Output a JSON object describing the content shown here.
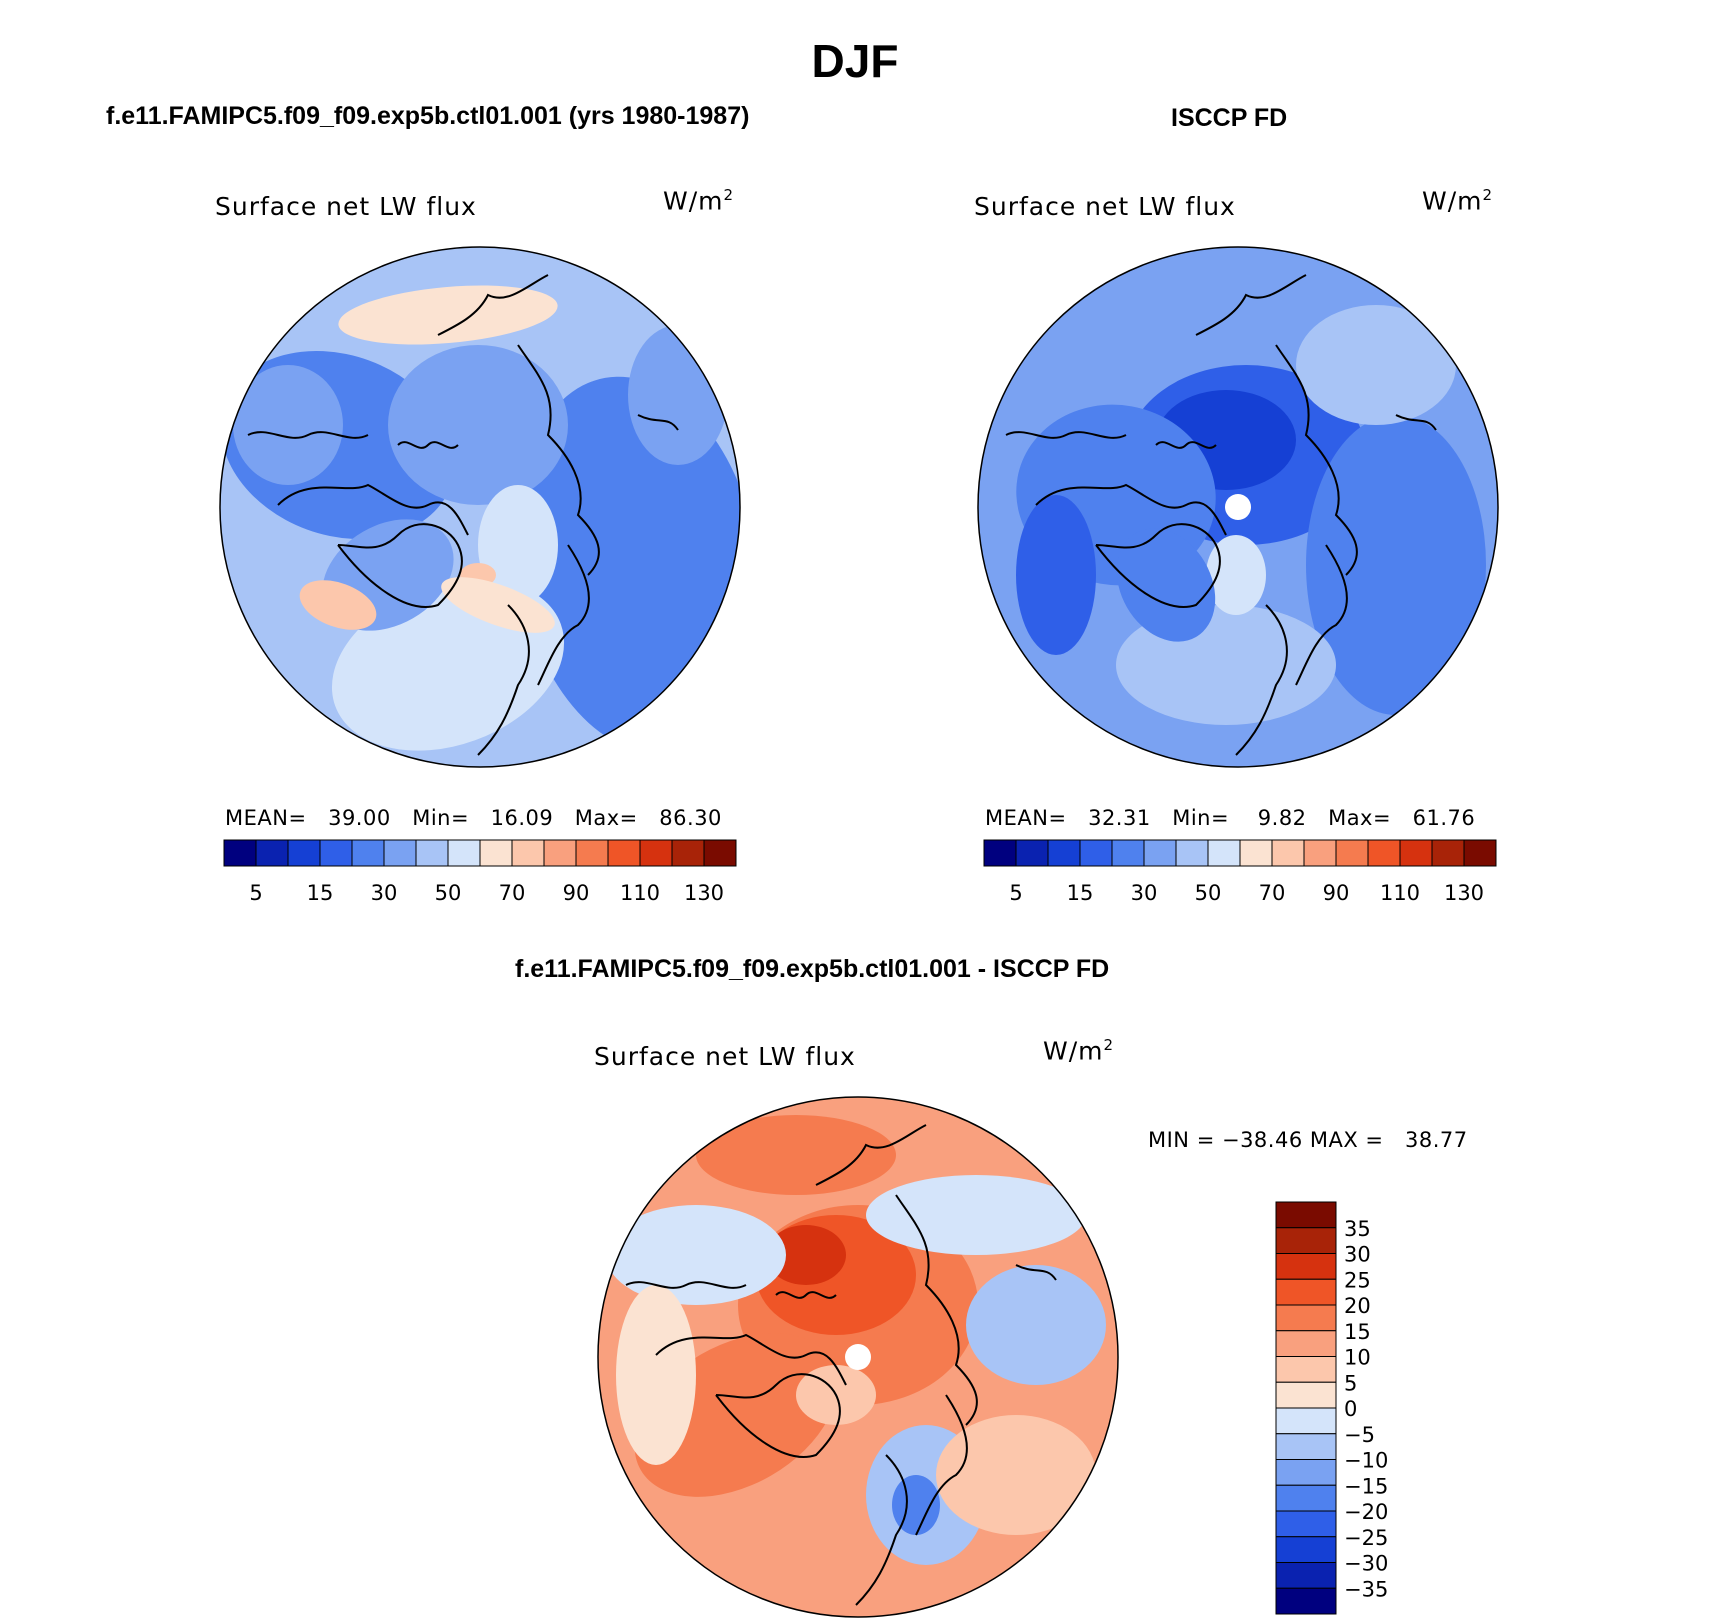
{
  "title": "DJF",
  "panels": {
    "model": {
      "title": "f.e11.FAMIPC5.f09_f09.exp5b.ctl01.001 (yrs 1980-1987)",
      "variable": "Surface net LW flux",
      "units": "W/m",
      "units_exp": "2",
      "stats": "MEAN=   39.00   Min=   16.09   Max=   86.30"
    },
    "obs": {
      "title": "ISCCP FD",
      "variable": "Surface net LW flux",
      "units": "W/m",
      "units_exp": "2",
      "stats": "MEAN=   32.31   Min=    9.82   Max=   61.76"
    },
    "diff": {
      "title": "f.e11.FAMIPC5.f09_f09.exp5b.ctl01.001 - ISCCP FD",
      "variable": "Surface net LW flux",
      "units": "W/m",
      "units_exp": "2",
      "stats": "MIN = −38.46 MAX =   38.77"
    }
  },
  "colorbar_horizontal": {
    "colors": [
      "#00007f",
      "#0a22b0",
      "#1540d4",
      "#2f5fe8",
      "#4f81ee",
      "#7aa2f2",
      "#a8c4f6",
      "#d4e4fa",
      "#fbe3d2",
      "#fcc7ac",
      "#f9a07e",
      "#f57b4f",
      "#ef5527",
      "#d6320f",
      "#a82308",
      "#7a0b00"
    ],
    "tick_labels": [
      "5",
      "15",
      "30",
      "50",
      "70",
      "90",
      "110",
      "130"
    ]
  },
  "colorbar_vertical": {
    "colors": [
      "#00007f",
      "#0a22b0",
      "#1540d4",
      "#2f5fe8",
      "#4f81ee",
      "#7aa2f2",
      "#a8c4f6",
      "#d4e4fa",
      "#fbe3d2",
      "#fcc7ac",
      "#f9a07e",
      "#f57b4f",
      "#ef5527",
      "#d6320f",
      "#a82308",
      "#7a0b00"
    ],
    "tick_labels": [
      "35",
      "30",
      "25",
      "20",
      "15",
      "10",
      "5",
      "0",
      "−5",
      "−10",
      "−15",
      "−20",
      "−25",
      "−30",
      "−35"
    ]
  },
  "map_colors": {
    "model": {
      "base": "#a8c4f6",
      "mid": "#7aa2f2",
      "dark": "#4f81ee",
      "light": "#d4e4fa",
      "warm": "#fbe3d2",
      "warm2": "#fcc7ac"
    },
    "obs": {
      "base": "#7aa2f2",
      "mid": "#4f81ee",
      "dark": "#2f5fe8",
      "darkest": "#1540d4",
      "light": "#a8c4f6",
      "lightest": "#d4e4fa"
    },
    "diff": {
      "base": "#f9a07e",
      "mid": "#f57b4f",
      "dark": "#ef5527",
      "darkest": "#d6320f",
      "light": "#fcc7ac",
      "lightest": "#fbe3d2",
      "cool": "#d4e4fa",
      "cool2": "#a8c4f6",
      "cool3": "#4f81ee"
    },
    "coastline": "#000000",
    "missing": "#ffffff"
  }
}
